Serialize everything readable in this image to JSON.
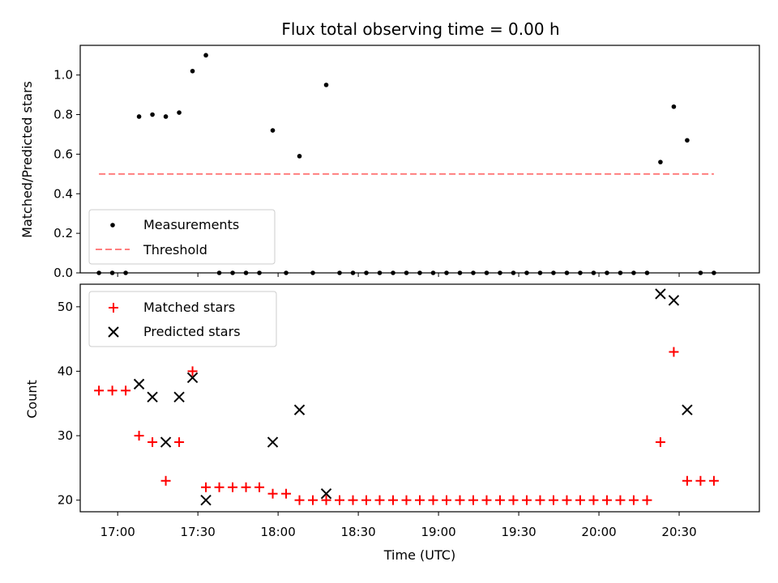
{
  "chart_data": [
    {
      "type": "scatter",
      "title": "Flux total observing time = 0.00 h",
      "xlabel": "",
      "ylabel": "Matched/Predicted stars",
      "ylim": [
        0,
        1.15
      ],
      "yticks": [
        "0.0",
        "0.2",
        "0.4",
        "0.6",
        "0.8",
        "1.0"
      ],
      "xlim": [
        "16:46",
        "21:00"
      ],
      "legend_position": "lower-left",
      "series": [
        {
          "name": "Measurements",
          "color": "#000000",
          "marker": "dot",
          "points": [
            [
              "16:53",
              0.0
            ],
            [
              "16:58",
              0.0
            ],
            [
              "17:03",
              0.0
            ],
            [
              "17:08",
              0.79
            ],
            [
              "17:13",
              0.8
            ],
            [
              "17:18",
              0.79
            ],
            [
              "17:23",
              0.81
            ],
            [
              "17:28",
              1.02
            ],
            [
              "17:33",
              1.1
            ],
            [
              "17:38",
              0.0
            ],
            [
              "17:43",
              0.0
            ],
            [
              "17:48",
              0.0
            ],
            [
              "17:53",
              0.0
            ],
            [
              "17:58",
              0.72
            ],
            [
              "18:03",
              0.0
            ],
            [
              "18:08",
              0.59
            ],
            [
              "18:13",
              0.0
            ],
            [
              "18:18",
              0.95
            ],
            [
              "18:23",
              0.0
            ],
            [
              "18:28",
              0.0
            ],
            [
              "18:33",
              0.0
            ],
            [
              "18:38",
              0.0
            ],
            [
              "18:43",
              0.0
            ],
            [
              "18:48",
              0.0
            ],
            [
              "18:53",
              0.0
            ],
            [
              "18:58",
              0.0
            ],
            [
              "19:03",
              0.0
            ],
            [
              "19:08",
              0.0
            ],
            [
              "19:13",
              0.0
            ],
            [
              "19:18",
              0.0
            ],
            [
              "19:23",
              0.0
            ],
            [
              "19:28",
              0.0
            ],
            [
              "19:33",
              0.0
            ],
            [
              "19:38",
              0.0
            ],
            [
              "19:43",
              0.0
            ],
            [
              "19:48",
              0.0
            ],
            [
              "19:53",
              0.0
            ],
            [
              "19:58",
              0.0
            ],
            [
              "20:03",
              0.0
            ],
            [
              "20:08",
              0.0
            ],
            [
              "20:13",
              0.0
            ],
            [
              "20:18",
              0.0
            ],
            [
              "20:23",
              0.56
            ],
            [
              "20:28",
              0.84
            ],
            [
              "20:33",
              0.67
            ],
            [
              "20:38",
              0.0
            ],
            [
              "20:43",
              0.0
            ]
          ]
        },
        {
          "name": "Threshold",
          "color": "#ff7f7f",
          "style": "dashed",
          "points": [
            [
              "16:53",
              0.5
            ],
            [
              "20:43",
              0.5
            ]
          ]
        }
      ]
    },
    {
      "type": "scatter",
      "title": "",
      "xlabel": "Time (UTC)",
      "ylabel": "Count",
      "ylim": [
        18.2,
        53.5
      ],
      "yticks": [
        "20",
        "30",
        "40",
        "50"
      ],
      "xticks": [
        "17:00",
        "17:30",
        "18:00",
        "18:30",
        "19:00",
        "19:30",
        "20:00",
        "20:30"
      ],
      "xlim": [
        "16:46",
        "21:00"
      ],
      "legend_position": "upper-left",
      "series": [
        {
          "name": "Matched stars",
          "color": "#ff0000",
          "marker": "plus",
          "points": [
            [
              "16:53",
              37
            ],
            [
              "16:58",
              37
            ],
            [
              "17:03",
              37
            ],
            [
              "17:08",
              30
            ],
            [
              "17:13",
              29
            ],
            [
              "17:18",
              23
            ],
            [
              "17:23",
              29
            ],
            [
              "17:28",
              40
            ],
            [
              "17:33",
              22
            ],
            [
              "17:38",
              22
            ],
            [
              "17:43",
              22
            ],
            [
              "17:48",
              22
            ],
            [
              "17:53",
              22
            ],
            [
              "17:58",
              21
            ],
            [
              "18:03",
              21
            ],
            [
              "18:08",
              20
            ],
            [
              "18:13",
              20
            ],
            [
              "18:18",
              20
            ],
            [
              "18:23",
              20
            ],
            [
              "18:28",
              20
            ],
            [
              "18:33",
              20
            ],
            [
              "18:38",
              20
            ],
            [
              "18:43",
              20
            ],
            [
              "18:48",
              20
            ],
            [
              "18:53",
              20
            ],
            [
              "18:58",
              20
            ],
            [
              "19:03",
              20
            ],
            [
              "19:08",
              20
            ],
            [
              "19:13",
              20
            ],
            [
              "19:18",
              20
            ],
            [
              "19:23",
              20
            ],
            [
              "19:28",
              20
            ],
            [
              "19:33",
              20
            ],
            [
              "19:38",
              20
            ],
            [
              "19:43",
              20
            ],
            [
              "19:48",
              20
            ],
            [
              "19:53",
              20
            ],
            [
              "19:58",
              20
            ],
            [
              "20:03",
              20
            ],
            [
              "20:08",
              20
            ],
            [
              "20:13",
              20
            ],
            [
              "20:18",
              20
            ],
            [
              "20:23",
              29
            ],
            [
              "20:28",
              43
            ],
            [
              "20:33",
              23
            ],
            [
              "20:38",
              23
            ],
            [
              "20:43",
              23
            ]
          ]
        },
        {
          "name": "Predicted stars",
          "color": "#000000",
          "marker": "x",
          "points": [
            [
              "17:08",
              38
            ],
            [
              "17:13",
              36
            ],
            [
              "17:18",
              29
            ],
            [
              "17:23",
              36
            ],
            [
              "17:28",
              39
            ],
            [
              "17:33",
              20
            ],
            [
              "17:58",
              29
            ],
            [
              "18:08",
              34
            ],
            [
              "18:18",
              21
            ],
            [
              "20:23",
              52
            ],
            [
              "20:28",
              51
            ],
            [
              "20:33",
              34
            ]
          ]
        }
      ]
    }
  ]
}
